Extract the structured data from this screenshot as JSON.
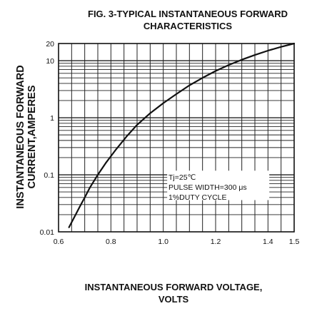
{
  "chart_data": {
    "type": "line",
    "title_lines": [
      "FIG. 3-TYPICAL INSTANTANEOUS FORWARD",
      "CHARACTERISTICS"
    ],
    "ylabel_lines": [
      "INSTANTANEOUS FORWARD",
      "CURRENT,AMPERES"
    ],
    "xlabel_lines": [
      "INSTANTANEOUS FORWARD VOLTAGE,",
      "VOLTS"
    ],
    "xlim": [
      0.6,
      1.5
    ],
    "ylim": [
      0.01,
      20
    ],
    "y_scale": "log",
    "grid": true,
    "x_ticks": [
      {
        "value": 0.6,
        "label": "0.6"
      },
      {
        "value": 0.8,
        "label": "0.8"
      },
      {
        "value": 1.0,
        "label": "1.0"
      },
      {
        "value": 1.2,
        "label": "1.2"
      },
      {
        "value": 1.4,
        "label": "1.4"
      },
      {
        "value": 1.5,
        "label": "1.5"
      }
    ],
    "y_ticks": [
      {
        "value": 0.01,
        "label": "0.01"
      },
      {
        "value": 0.1,
        "label": "0.1"
      },
      {
        "value": 1,
        "label": "1"
      },
      {
        "value": 10,
        "label": "10"
      },
      {
        "value": 20,
        "label": "20"
      }
    ],
    "annotation_lines": [
      "Tj=25℃",
      "PULSE WIDTH=300 μs",
      "1%DUTY CYCLE"
    ],
    "series": [
      {
        "x": [
          0.64,
          0.66,
          0.68,
          0.7,
          0.72,
          0.75,
          0.78,
          0.82,
          0.86,
          0.9,
          0.95,
          1.0,
          1.05,
          1.1,
          1.15,
          1.2,
          1.25,
          1.3,
          1.35,
          1.4,
          1.45,
          1.5
        ],
        "y": [
          0.012,
          0.018,
          0.027,
          0.04,
          0.06,
          0.1,
          0.16,
          0.28,
          0.47,
          0.75,
          1.2,
          1.8,
          2.6,
          3.7,
          5.0,
          6.6,
          8.4,
          10.4,
          12.6,
          15.0,
          17.5,
          20.0
        ],
        "color": "#111111"
      }
    ]
  }
}
